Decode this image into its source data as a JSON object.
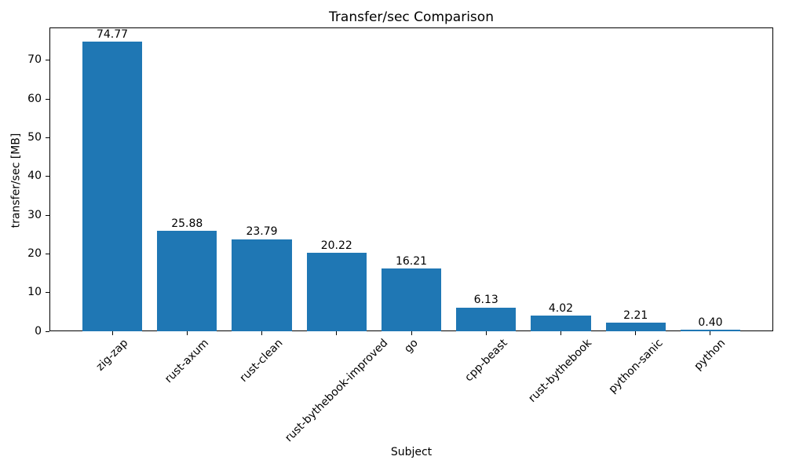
{
  "chart_data": {
    "type": "bar",
    "title": "Transfer/sec Comparison",
    "xlabel": "Subject",
    "ylabel": "transfer/sec [MB]",
    "categories": [
      "zig-zap",
      "rust-axum",
      "rust-clean",
      "rust-bythebook-improved",
      "go",
      "cpp-beast",
      "rust-bythebook",
      "python-sanic",
      "python"
    ],
    "values": [
      74.77,
      25.88,
      23.79,
      20.22,
      16.21,
      6.13,
      4.02,
      2.21,
      0.4
    ],
    "bar_labels": [
      "74.77",
      "25.88",
      "23.79",
      "20.22",
      "16.21",
      "6.13",
      "4.02",
      "2.21",
      "0.40"
    ],
    "yticks": [
      0,
      10,
      20,
      30,
      40,
      50,
      60,
      70
    ],
    "ylim": [
      0,
      78.5
    ],
    "bar_color": "#1f77b4",
    "axis_color": "#000000",
    "background_color": "#ffffff",
    "grid": "off",
    "legend": "none",
    "xtick_rotation_deg": 45
  }
}
